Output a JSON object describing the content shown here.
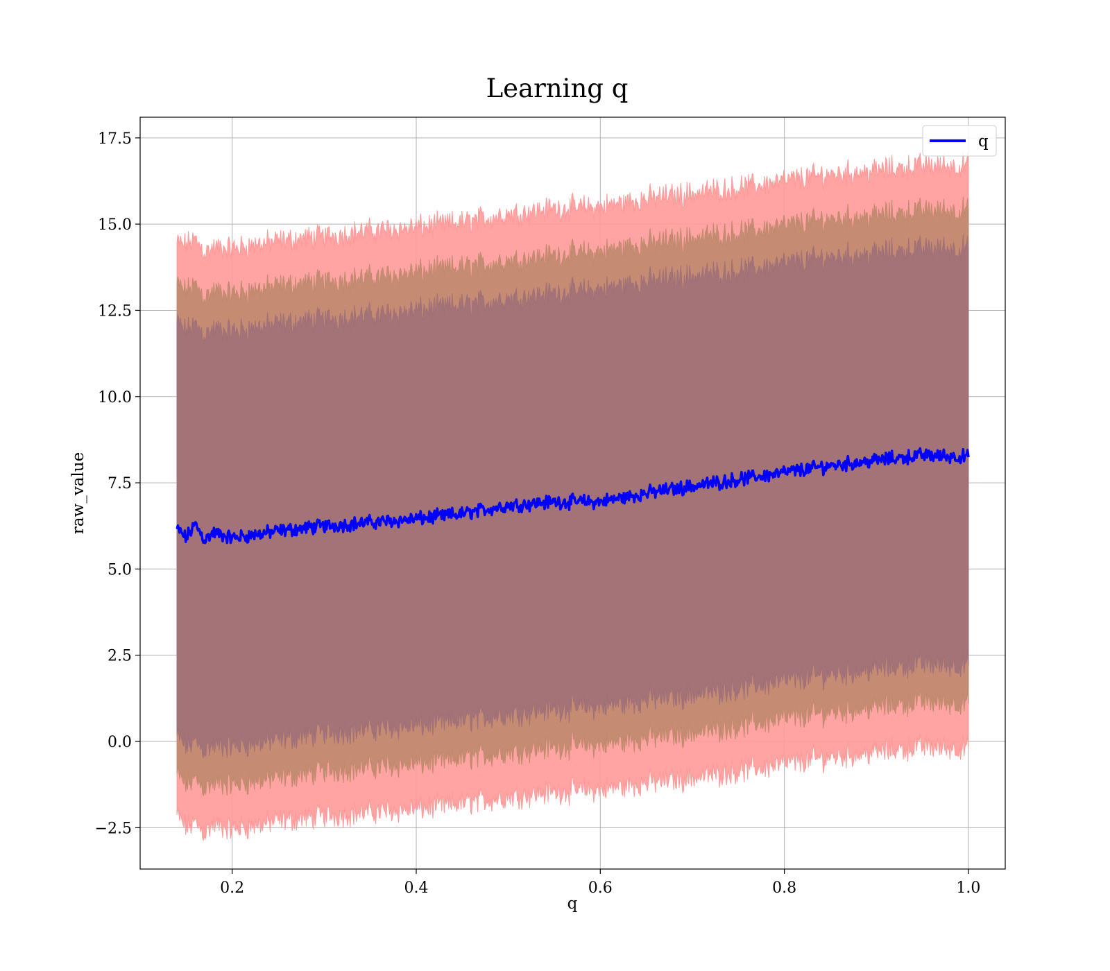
{
  "chart_data": {
    "type": "line",
    "title": "Learning q",
    "xlabel": "q",
    "ylabel": "raw_value",
    "xlim": [
      0.1,
      1.04
    ],
    "ylim": [
      -3.7,
      18.1
    ],
    "x_ticks": [
      0.2,
      0.4,
      0.6,
      0.8,
      1.0
    ],
    "x_tick_labels": [
      "0.2",
      "0.4",
      "0.6",
      "0.8",
      "1.0"
    ],
    "y_ticks": [
      -2.5,
      0.0,
      2.5,
      5.0,
      7.5,
      10.0,
      12.5,
      15.0,
      17.5
    ],
    "y_tick_labels": [
      "−2.5",
      "0.0",
      "2.5",
      "5.0",
      "7.5",
      "10.0",
      "12.5",
      "15.0",
      "17.5"
    ],
    "grid": true,
    "legend": {
      "position": "top-right",
      "entries": [
        "q"
      ]
    },
    "series": [
      {
        "name": "q",
        "color": "#0000ff",
        "x": [
          0.14,
          0.15,
          0.16,
          0.17,
          0.18,
          0.2,
          0.25,
          0.3,
          0.35,
          0.4,
          0.45,
          0.5,
          0.55,
          0.6,
          0.65,
          0.7,
          0.75,
          0.8,
          0.85,
          0.9,
          0.95,
          1.0
        ],
        "y": [
          6.15,
          5.9,
          6.3,
          5.85,
          6.05,
          5.9,
          6.1,
          6.25,
          6.35,
          6.45,
          6.6,
          6.85,
          6.95,
          6.95,
          7.2,
          7.4,
          7.6,
          7.8,
          8.0,
          8.15,
          8.3,
          8.25
        ]
      }
    ],
    "bands": [
      {
        "role": "outer",
        "color": "#ff9999",
        "upper": [
          14.45,
          14.4,
          14.55,
          14.2,
          14.3,
          14.3,
          14.5,
          14.65,
          14.8,
          14.9,
          15.05,
          15.3,
          15.45,
          15.5,
          15.75,
          15.9,
          16.05,
          16.25,
          16.45,
          16.55,
          16.7,
          16.7
        ],
        "lower": [
          -2.15,
          -2.5,
          -2.35,
          -2.65,
          -2.4,
          -2.55,
          -2.3,
          -2.15,
          -2.05,
          -1.95,
          -1.8,
          -1.6,
          -1.45,
          -1.4,
          -1.2,
          -1.05,
          -0.85,
          -0.65,
          -0.45,
          -0.3,
          -0.15,
          -0.2
        ]
      },
      {
        "role": "middle",
        "color": "#c08a6e",
        "upper": [
          13.25,
          13.05,
          13.25,
          12.9,
          13.05,
          13.0,
          13.2,
          13.35,
          13.45,
          13.6,
          13.75,
          13.95,
          14.1,
          14.2,
          14.45,
          14.6,
          14.75,
          14.95,
          15.15,
          15.25,
          15.4,
          15.4
        ],
        "lower": [
          -0.95,
          -1.25,
          -1.1,
          -1.35,
          -1.2,
          -1.25,
          -1.05,
          -0.85,
          -0.75,
          -0.65,
          -0.5,
          -0.3,
          -0.15,
          -0.1,
          0.1,
          0.25,
          0.45,
          0.65,
          0.85,
          1.0,
          1.15,
          1.1
        ]
      },
      {
        "role": "inner",
        "color": "#a07078",
        "upper": [
          12.15,
          11.9,
          12.1,
          11.8,
          11.95,
          11.9,
          12.1,
          12.25,
          12.35,
          12.5,
          12.65,
          12.85,
          13.0,
          13.1,
          13.35,
          13.5,
          13.65,
          13.85,
          14.05,
          14.15,
          14.3,
          14.3
        ],
        "lower": [
          0.15,
          -0.15,
          0.0,
          -0.25,
          -0.1,
          -0.15,
          0.05,
          0.25,
          0.35,
          0.45,
          0.6,
          0.8,
          0.95,
          1.0,
          1.2,
          1.35,
          1.55,
          1.75,
          1.95,
          2.1,
          2.25,
          2.2
        ]
      }
    ]
  }
}
